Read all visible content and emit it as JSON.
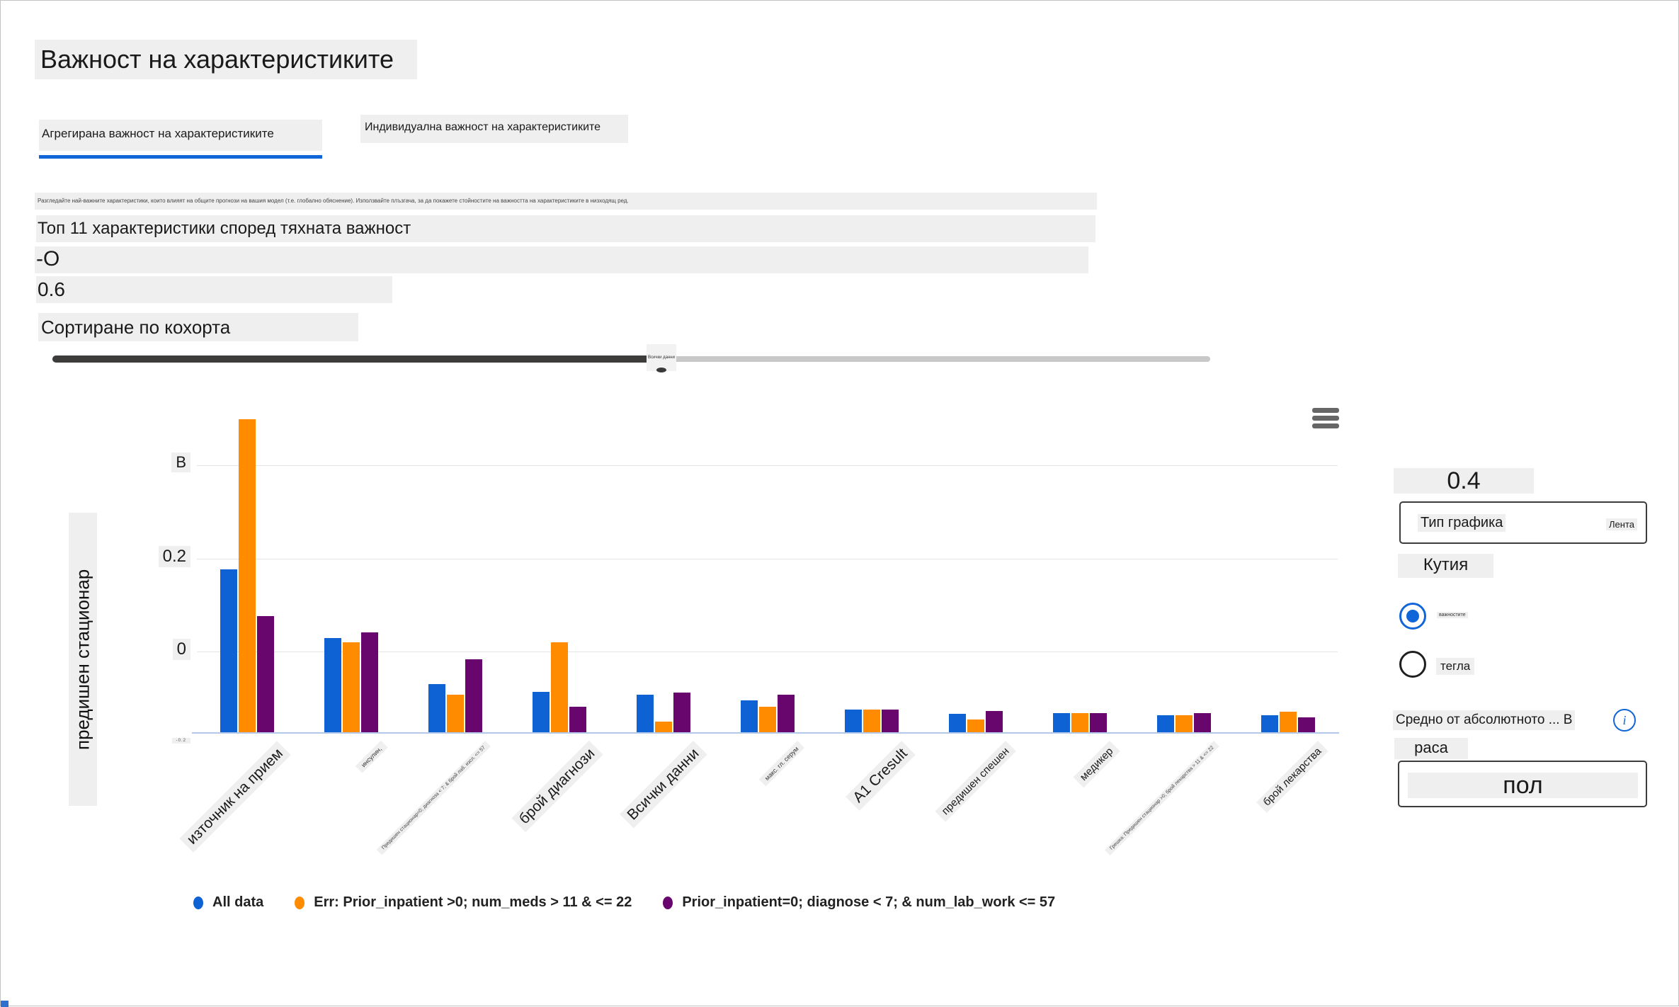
{
  "page": {
    "title": "Важност на характеристиките"
  },
  "tabs": [
    {
      "label": "Агрегирана важност на характеристиките",
      "active": true
    },
    {
      "label": "Индивидуална важност на характеристиките",
      "active": false
    }
  ],
  "description": "Разгледайте най-важните характеристики, които влияят на общите прогнози на вашия модел (т.е. глобално обяснение). Използвайте плъзгача, за да покажете стойностите на важността на характеристиките в низходящ ред.",
  "controls": {
    "top_features_label": "Топ 11 характеристики според тяхната важност",
    "fragment_minus": "-О",
    "fragment_value": "0.6",
    "sort_by_cohort_label": "Сортиране по кохорта",
    "slider_tooltip": "Всички данни"
  },
  "chart_data": {
    "type": "bar",
    "title": "",
    "ylabel": "предишен стационар",
    "ylim": [
      -0.173,
      0.525
    ],
    "baseline": -0.173,
    "grid": true,
    "legend_position": "bottom",
    "yticks": [
      {
        "label": "В",
        "value": 0.4,
        "grid": true,
        "tiny": false
      },
      {
        "label": "0.2",
        "value": 0.2,
        "grid": true,
        "tiny": false
      },
      {
        "label": "0",
        "value": 0.0,
        "grid": true,
        "tiny": false
      },
      {
        "label": "-0.2",
        "value": -0.2,
        "grid": false,
        "tiny": true
      }
    ],
    "categories": [
      {
        "label": "източник на прием",
        "size": "lg"
      },
      {
        "label": "инсулин,",
        "size": "sm"
      },
      {
        "label": "Предишен стационар=0; диагноза < 7; & брой лаб. изсл. <= 57",
        "size": "xs"
      },
      {
        "label": "брой диагнози",
        "size": "lg"
      },
      {
        "label": "Всички данни",
        "size": "lg"
      },
      {
        "label": "макс. гл. серум",
        "size": "sm"
      },
      {
        "label": "A1 Cresult",
        "size": "lg"
      },
      {
        "label": "предишен спешен",
        "size": "md"
      },
      {
        "label": "медикер",
        "size": "md"
      },
      {
        "label": "Грешка: Предишен стационар >0; брой лекарства > 11 & <= 22",
        "size": "xs"
      },
      {
        "label": "брой лекарства",
        "size": "md"
      }
    ],
    "series": [
      {
        "name": "All data",
        "color": "#0e62d4",
        "values": [
          0.177,
          0.029,
          -0.07,
          -0.086,
          -0.092,
          -0.105,
          -0.124,
          -0.133,
          -0.132,
          -0.136,
          -0.136
        ]
      },
      {
        "name": "Err: Prior_inpatient >0; num_meds > 11 & <= 22",
        "color": "#ff8c00",
        "values": [
          0.5,
          0.02,
          -0.092,
          0.02,
          -0.15,
          -0.118,
          -0.124,
          -0.146,
          -0.132,
          -0.136,
          -0.129
        ]
      },
      {
        "name": "Prior_inpatient=0; diagnose < 7; & num_lab_work <= 57",
        "color": "#68066e",
        "values": [
          0.076,
          0.041,
          -0.016,
          -0.118,
          -0.088,
          -0.092,
          -0.124,
          -0.127,
          -0.132,
          -0.132,
          -0.141
        ]
      }
    ]
  },
  "right_panel": {
    "value": "0.4",
    "chart_type_label": "Тип графика",
    "chart_type_value": "Лента",
    "box_option_label": "Кутия",
    "radio_options": [
      {
        "label": "важностите",
        "selected": true
      },
      {
        "label": "тегла",
        "selected": false
      }
    ],
    "metric_label": "Средно от абсолютното ... В",
    "info_icon_glyph": "i",
    "feature_small": "раса",
    "feature_selected": "пол"
  }
}
